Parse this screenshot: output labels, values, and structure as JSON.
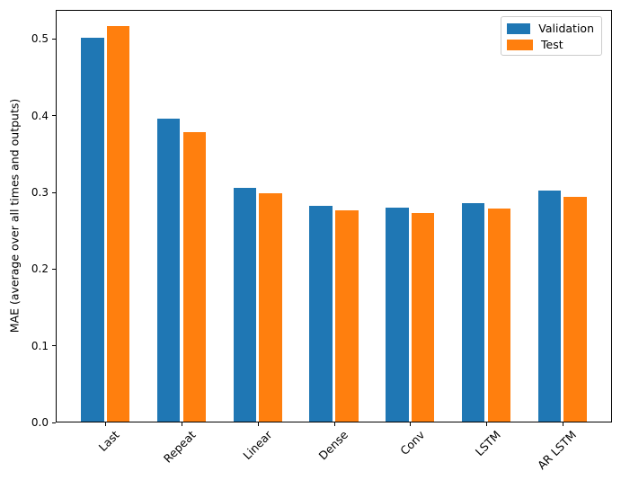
{
  "window": {
    "background": "#ffffff"
  },
  "colors": {
    "validation_bar": "#1f77b4",
    "test_bar": "#ff7f0e",
    "axis": "#000000",
    "legend_border": "#cccccc"
  },
  "chart_data": {
    "type": "bar",
    "categories": [
      "Last",
      "Repeat",
      "Linear",
      "Dense",
      "Conv",
      "LSTM",
      "AR LSTM"
    ],
    "series": [
      {
        "name": "Validation",
        "color": "#1f77b4",
        "values": [
          0.501,
          0.395,
          0.305,
          0.281,
          0.279,
          0.285,
          0.301
        ]
      },
      {
        "name": "Test",
        "color": "#ff7f0e",
        "values": [
          0.516,
          0.377,
          0.298,
          0.275,
          0.272,
          0.278,
          0.293
        ]
      }
    ],
    "title": "",
    "xlabel": "",
    "ylabel": "MAE (average over all times and outputs)",
    "ylim": [
      0,
      0.538
    ],
    "xlim": [
      -0.652,
      6.652
    ],
    "yticks": [
      0.0,
      0.1,
      0.2,
      0.3,
      0.4,
      0.5
    ],
    "ytick_labels": [
      "0.0",
      "0.1",
      "0.2",
      "0.3",
      "0.4",
      "0.5"
    ],
    "xtick_rotation": 45,
    "bar_width": 0.3,
    "bar_offset": 0.17,
    "grid": false,
    "legend_position": "upper right"
  }
}
